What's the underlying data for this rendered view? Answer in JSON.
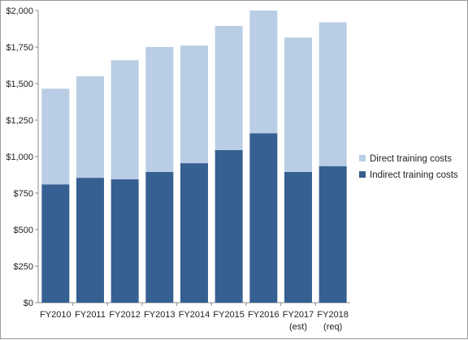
{
  "chart_data": {
    "type": "bar",
    "stacked": true,
    "title": "",
    "xlabel": "",
    "ylabel": "",
    "categories": [
      [
        "FY2010"
      ],
      [
        "FY2011"
      ],
      [
        "FY2012"
      ],
      [
        "FY2013"
      ],
      [
        "FY2014"
      ],
      [
        "FY2015"
      ],
      [
        "FY2016"
      ],
      [
        "FY2017",
        "(est)"
      ],
      [
        "FY2018",
        "(req)"
      ]
    ],
    "series": [
      {
        "name": "Indirect training costs",
        "color": "#376092",
        "values": [
          810,
          855,
          845,
          895,
          955,
          1045,
          1160,
          895,
          935
        ]
      },
      {
        "name": "Direct training costs",
        "color": "#b9cde5",
        "values": [
          655,
          695,
          815,
          855,
          805,
          850,
          840,
          920,
          985
        ]
      }
    ],
    "ylim": [
      0,
      2000
    ],
    "yticks": [
      0,
      250,
      500,
      750,
      1000,
      1250,
      1500,
      1750,
      2000
    ],
    "ytick_labels": [
      "$0",
      "$250",
      "$500",
      "$750",
      "$1,000",
      "$1,250",
      "$1,500",
      "$1,750",
      "$2,000"
    ],
    "grid": false,
    "legend": {
      "position": "right",
      "order": [
        "Direct training costs",
        "Indirect training costs"
      ]
    }
  }
}
